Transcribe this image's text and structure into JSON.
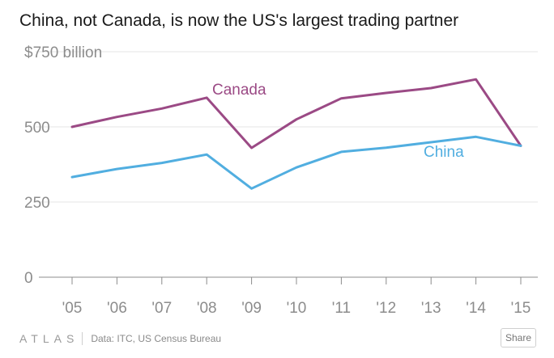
{
  "title": "China, not Canada, is now the US's largest trading partner",
  "footer": {
    "logo": "ATLAS",
    "source": "Data: ITC, US Census Bureau",
    "share_label": "Share"
  },
  "chart_data": {
    "type": "line",
    "title": "China, not Canada, is now the US's largest trading partner",
    "xlabel": "",
    "ylabel": "",
    "ylim": [
      0,
      750
    ],
    "y_ticks": [
      {
        "value": 0,
        "label": "0"
      },
      {
        "value": 250,
        "label": "250"
      },
      {
        "value": 500,
        "label": "500"
      },
      {
        "value": 750,
        "label": "$750 billion"
      }
    ],
    "categories": [
      "'05",
      "'06",
      "'07",
      "'08",
      "'09",
      "'10",
      "'11",
      "'12",
      "'13",
      "'14",
      "'15"
    ],
    "series": [
      {
        "name": "Canada",
        "color": "#9b4a85",
        "values": [
          500,
          533,
          561,
          597,
          430,
          525,
          595,
          613,
          629,
          658,
          437
        ]
      },
      {
        "name": "China",
        "color": "#51aee0",
        "values": [
          333,
          360,
          380,
          408,
          295,
          365,
          417,
          431,
          449,
          467,
          437
        ]
      }
    ],
    "grid": true,
    "legend": "inline labels"
  }
}
